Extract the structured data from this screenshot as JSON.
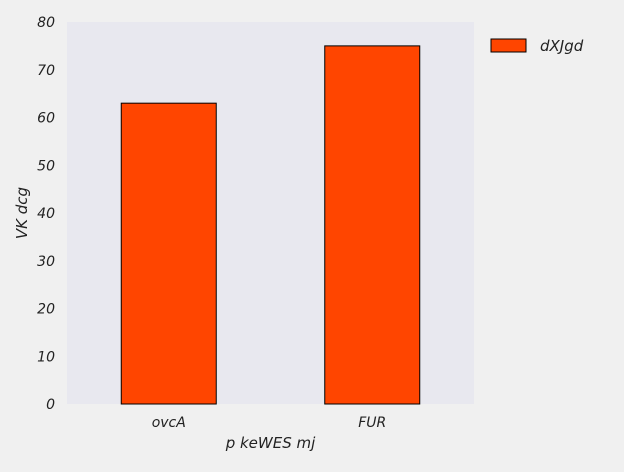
{
  "chart_data": {
    "type": "bar",
    "title": "",
    "xlabel": "p keWES mj",
    "ylabel": "VK dcg",
    "categories": [
      "ovcA",
      "FUR"
    ],
    "series": [
      {
        "name": "dXJgd",
        "values": [
          63,
          75
        ],
        "color": "#ff4500"
      }
    ],
    "ylim": [
      0,
      80
    ],
    "yticks": [
      0,
      10,
      20,
      30,
      40,
      50,
      60,
      70,
      80
    ],
    "grid": false,
    "legend_position": "outside-top-right",
    "plot_background": "#e8e8ef",
    "figure_background": "#f0f0f0",
    "bar_edge_color": "#000000"
  }
}
